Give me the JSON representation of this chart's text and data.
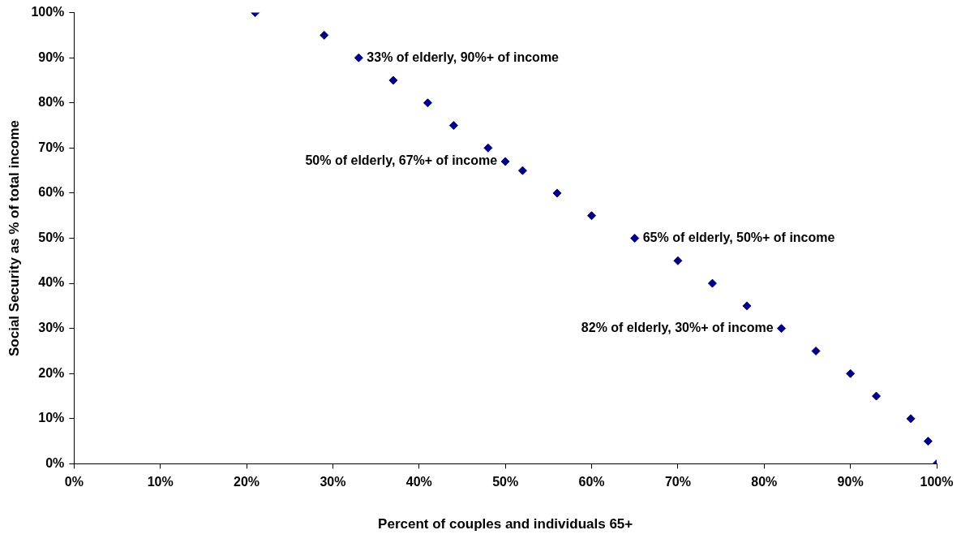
{
  "chart_data": {
    "type": "scatter",
    "xlabel": "Percent of couples and individuals 65+",
    "ylabel": "Social Security as % of total income",
    "x": [
      21,
      29,
      33,
      37,
      41,
      44,
      48,
      50,
      52,
      56,
      60,
      65,
      70,
      74,
      78,
      82,
      86,
      90,
      93,
      97,
      99,
      100
    ],
    "series": [
      {
        "color": "#000080",
        "values": [
          100,
          95,
          90,
          85,
          80,
          75,
          70,
          67,
          65,
          60,
          55,
          50,
          45,
          40,
          35,
          30,
          25,
          20,
          15,
          10,
          5,
          0
        ]
      }
    ],
    "xlim": [
      0,
      100
    ],
    "ylim": [
      0,
      100
    ],
    "xticks": [
      {
        "value": 0,
        "label": "0%"
      },
      {
        "value": 10,
        "label": "10%"
      },
      {
        "value": 20,
        "label": "20%"
      },
      {
        "value": 30,
        "label": "30%"
      },
      {
        "value": 40,
        "label": "40%"
      },
      {
        "value": 50,
        "label": "50%"
      },
      {
        "value": 60,
        "label": "60%"
      },
      {
        "value": 70,
        "label": "70%"
      },
      {
        "value": 80,
        "label": "80%"
      },
      {
        "value": 90,
        "label": "90%"
      },
      {
        "value": 100,
        "label": "100%"
      }
    ],
    "yticks": [
      {
        "value": 0,
        "label": "0%"
      },
      {
        "value": 10,
        "label": "10%"
      },
      {
        "value": 20,
        "label": "20%"
      },
      {
        "value": 30,
        "label": "30%"
      },
      {
        "value": 40,
        "label": "40%"
      },
      {
        "value": 50,
        "label": "50%"
      },
      {
        "value": 60,
        "label": "60%"
      },
      {
        "value": 70,
        "label": "70%"
      },
      {
        "value": 80,
        "label": "80%"
      },
      {
        "value": 90,
        "label": "90%"
      },
      {
        "value": 100,
        "label": "100%"
      }
    ],
    "marker": "diamond",
    "grid": false,
    "legend": false,
    "annotations": [
      {
        "text": "33% of elderly, 90%+ of income",
        "x": 33,
        "y": 90
      },
      {
        "text": "50% of elderly, 67%+ of income",
        "x": 50,
        "y": 67
      },
      {
        "text": "65% of elderly, 50%+ of income",
        "x": 65,
        "y": 50
      },
      {
        "text": "82% of elderly, 30%+ of income",
        "x": 82,
        "y": 30
      }
    ]
  }
}
